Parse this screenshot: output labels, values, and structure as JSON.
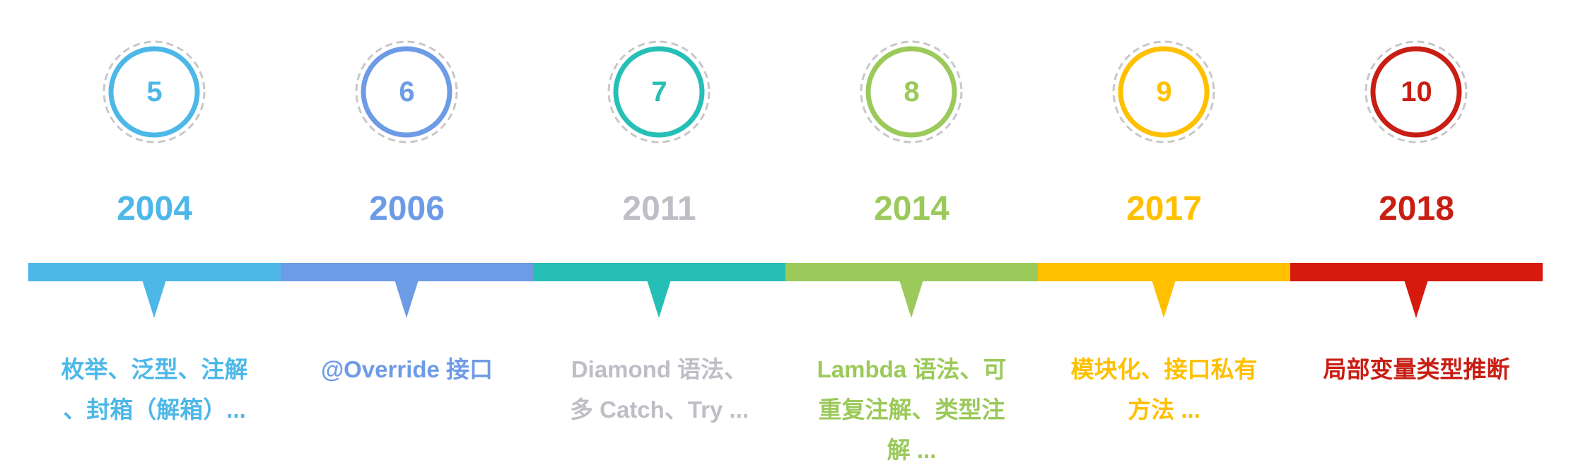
{
  "milestones": [
    {
      "version": "5",
      "year": "2004",
      "desc_lines": [
        "枚举、泛型、注解",
        "、封箱（解箱）..."
      ],
      "color": "#4DB8E8",
      "bar_color": "#4DB8E8"
    },
    {
      "version": "6",
      "year": "2006",
      "desc_lines": [
        "@Override 接口"
      ],
      "color": "#6E9BE6",
      "bar_color": "#6E9BE6"
    },
    {
      "version": "7",
      "year": "2011",
      "desc_lines": [
        "Diamond 语法、",
        "多 Catch、Try ..."
      ],
      "color": "#BEBEC6",
      "circle_color": "#26BFB5",
      "bar_color": "#26BFB5"
    },
    {
      "version": "8",
      "year": "2014",
      "desc_lines": [
        "Lambda 语法、可",
        "重复注解、类型注",
        "解 ..."
      ],
      "color": "#9BC95A",
      "bar_color": "#9BC95A"
    },
    {
      "version": "9",
      "year": "2017",
      "desc_lines": [
        "模块化、接口私有",
        "方法 ..."
      ],
      "color": "#FFC000",
      "bar_color": "#FFC000"
    },
    {
      "version": "10",
      "year": "2018",
      "desc_lines": [
        "局部变量类型推断"
      ],
      "color": "#C81E14",
      "bar_color": "#D61A0E"
    }
  ]
}
